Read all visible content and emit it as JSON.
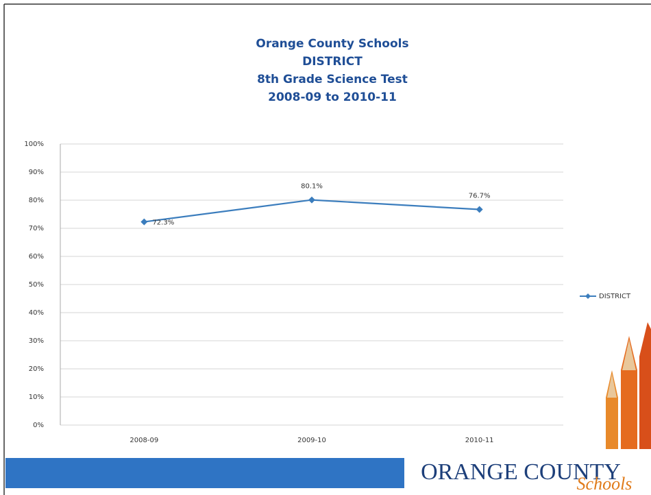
{
  "chart_data": {
    "type": "line",
    "title": [
      "Orange County Schools",
      "DISTRICT",
      "8th Grade Science Test",
      "2008-09 to 2010-11"
    ],
    "categories": [
      "2008-09",
      "2009-10",
      "2010-11"
    ],
    "series": [
      {
        "name": "DISTRICT",
        "color": "#3b7dbd",
        "values": [
          72.3,
          80.1,
          76.7
        ],
        "value_labels": [
          "72.3%",
          "80.1%",
          "76.7%"
        ]
      }
    ],
    "ylim": [
      0,
      100
    ],
    "yticks": [
      {
        "value": 0,
        "label": "0%"
      },
      {
        "value": 10,
        "label": "10%"
      },
      {
        "value": 20,
        "label": "20%"
      },
      {
        "value": 30,
        "label": "30%"
      },
      {
        "value": 40,
        "label": "40%"
      },
      {
        "value": 50,
        "label": "50%"
      },
      {
        "value": 60,
        "label": "60%"
      },
      {
        "value": 70,
        "label": "70%"
      },
      {
        "value": 80,
        "label": "80%"
      },
      {
        "value": 90,
        "label": "90%"
      },
      {
        "value": 100,
        "label": "100%"
      }
    ],
    "grid": true,
    "legend": "right"
  },
  "footer": {
    "brand": "ORANGE COUNTY",
    "sub": "Schools"
  }
}
